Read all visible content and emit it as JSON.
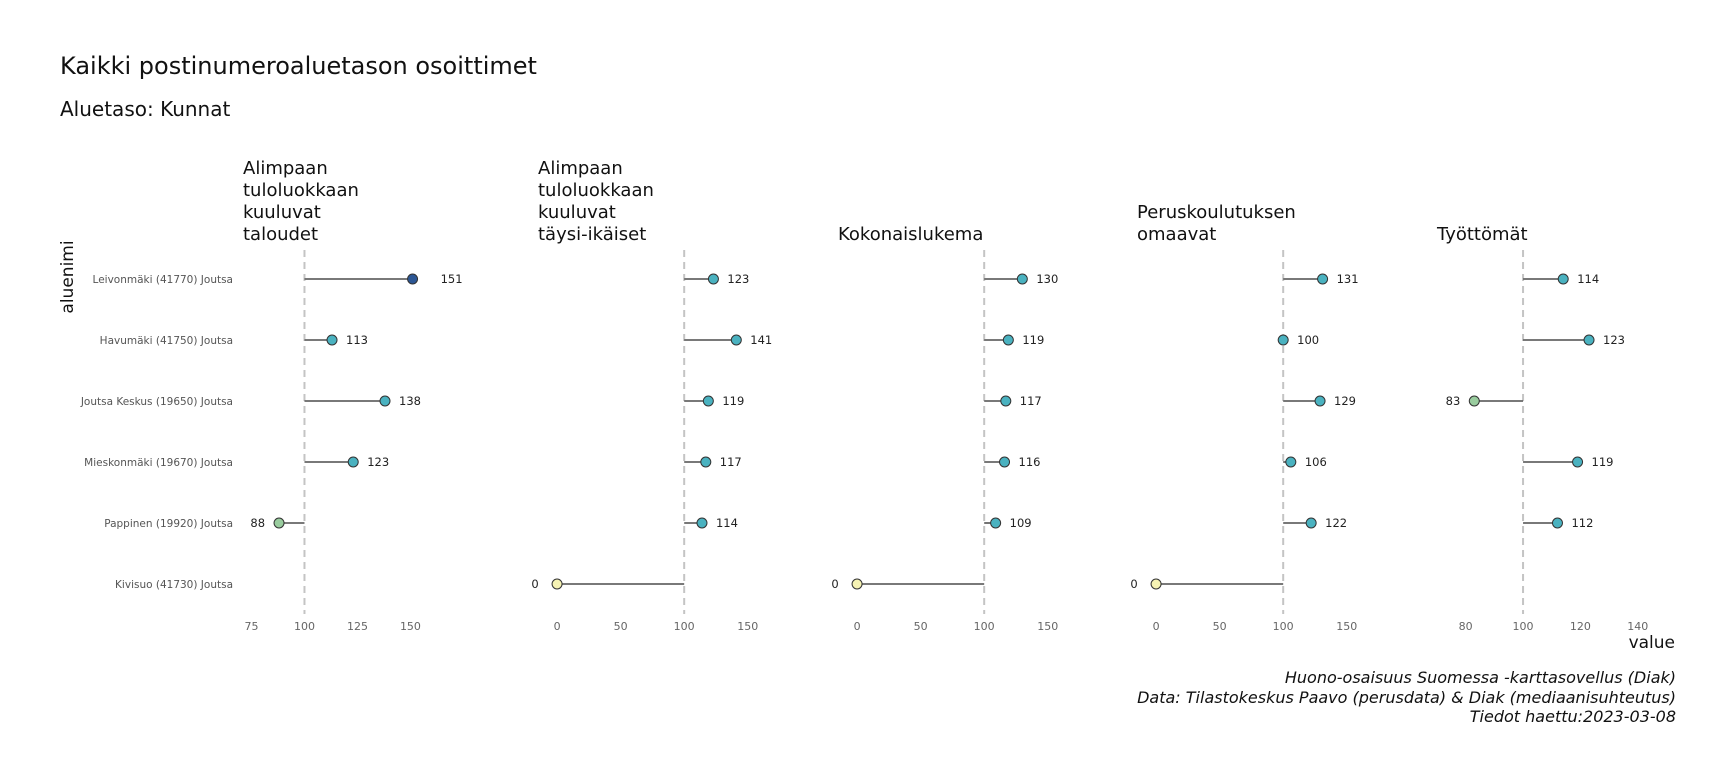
{
  "title": "Kaikki postinumeroaluetason osoittimet",
  "subtitle": "Aluetaso: Kunnat",
  "caption": [
    "Huono-osaisuus Suomessa -karttasovellus (Diak)",
    "Data: Tilastokeskus Paavo (perusdata) & Diak (mediaanisuhteutus)",
    "Tiedot haettu:2023-03-08"
  ],
  "chart_data": {
    "type": "lollipop",
    "ylabel": "aluenimi",
    "xlabel": "value",
    "reference_line": 100,
    "categories": [
      "Leivonmäki (41770) Joutsa",
      "Havumäki (41750) Joutsa",
      "Joutsa Keskus (19650) Joutsa",
      "Mieskonmäki (19670) Joutsa",
      "Pappinen (19920) Joutsa",
      "Kivisuo (41730) Joutsa"
    ],
    "panels": [
      {
        "title_lines": [
          "Alimpaan",
          "tuloluokkaan",
          "kuuluvat",
          "taloudet"
        ],
        "values": [
          151,
          113,
          138,
          123,
          88,
          null
        ],
        "xticks": [
          75,
          100,
          125,
          150
        ],
        "xlim": [
          71,
          163
        ]
      },
      {
        "title_lines": [
          "Alimpaan",
          "tuloluokkaan",
          "kuuluvat",
          "täysi-ikäiset"
        ],
        "values": [
          123,
          141,
          119,
          117,
          114,
          0
        ],
        "xticks": [
          0,
          50,
          100,
          150
        ],
        "xlim": [
          -15,
          162
        ]
      },
      {
        "title_lines": [
          "Kokonaislukema"
        ],
        "values": [
          130,
          119,
          117,
          116,
          109,
          0
        ],
        "xticks": [
          0,
          50,
          100,
          150
        ],
        "xlim": [
          -15,
          162
        ]
      },
      {
        "title_lines": [
          "Peruskoulutuksen",
          "omaavat"
        ],
        "values": [
          131,
          100,
          129,
          106,
          122,
          0
        ],
        "xticks": [
          0,
          50,
          100,
          150
        ],
        "xlim": [
          -15,
          162
        ]
      },
      {
        "title_lines": [
          "Työttömät"
        ],
        "values": [
          114,
          123,
          83,
          119,
          112,
          null
        ],
        "xticks": [
          80,
          100,
          120,
          140
        ],
        "xlim": [
          70,
          146
        ]
      }
    ],
    "colors": {
      "low": "#f6f3b4",
      "mid_low": "#99cc9e",
      "mid": "#4ab2c0",
      "high": "#2c5694",
      "stem": "#666666",
      "reference": "#c4c4c4"
    }
  }
}
